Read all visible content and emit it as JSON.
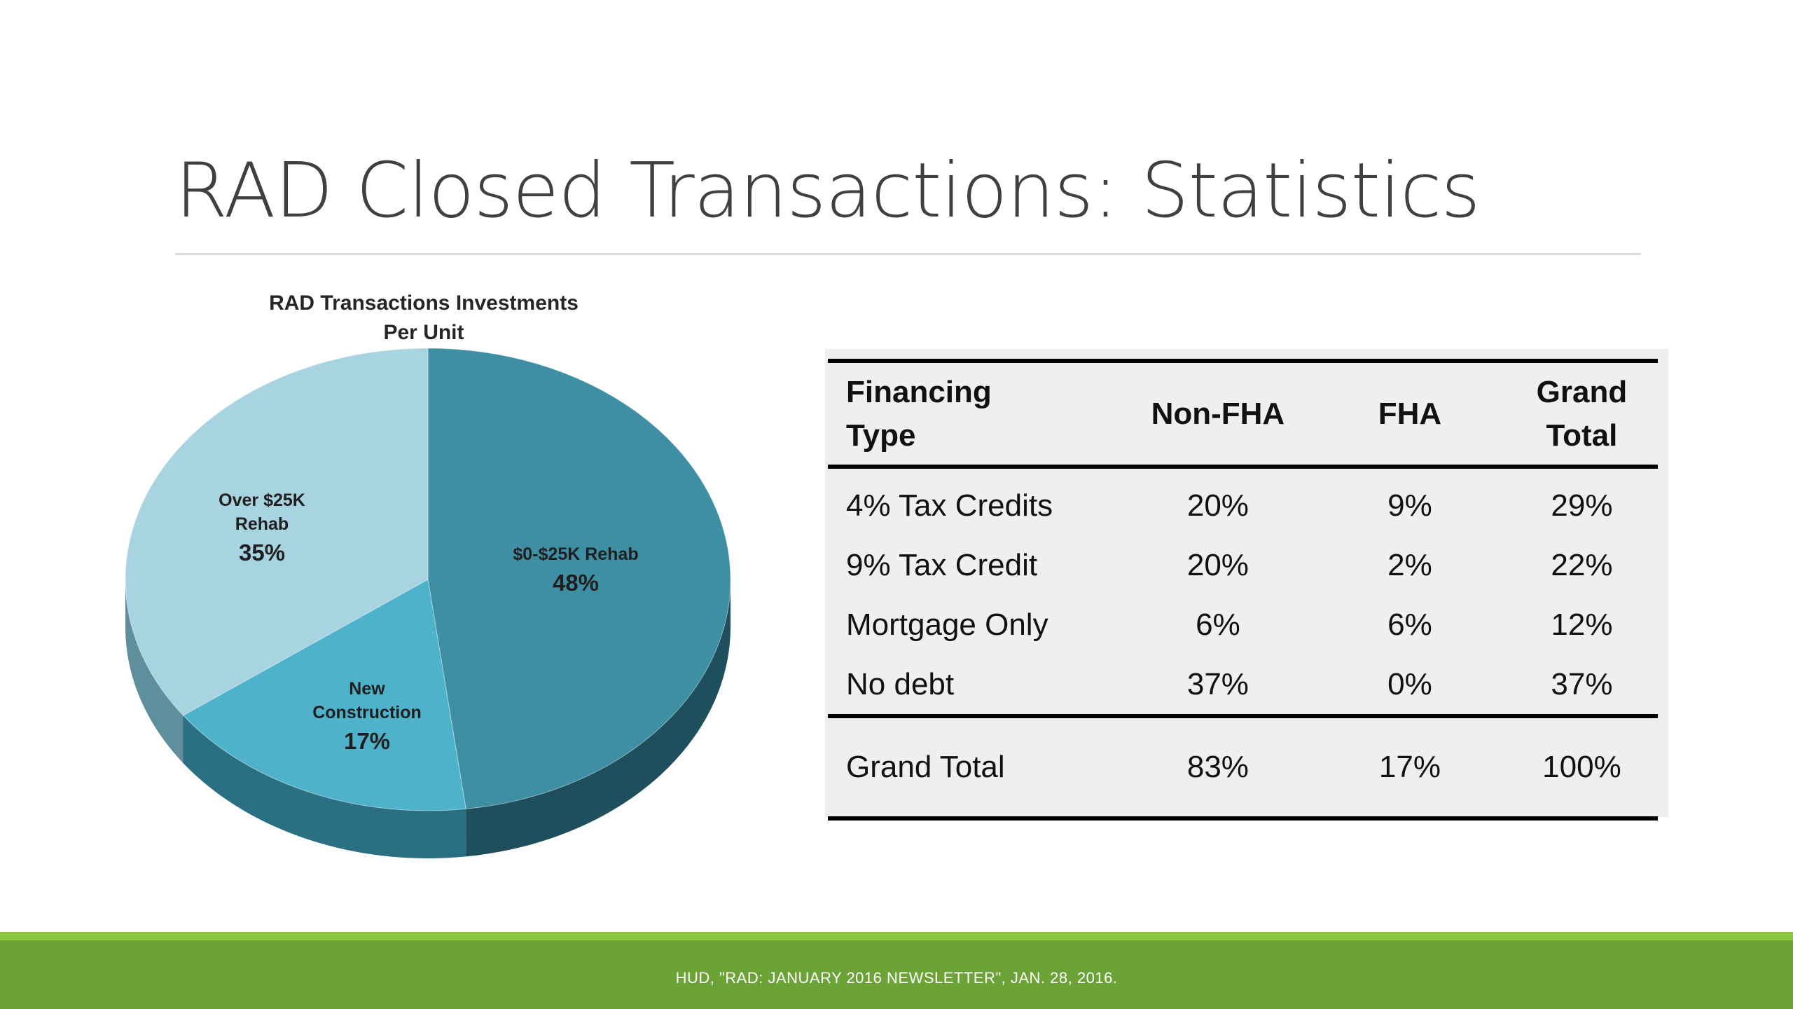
{
  "slide": {
    "title": "RAD Closed Transactions: Statistics",
    "footer": "HUD, \"RAD: JANUARY 2016 NEWSLETTER\", JAN. 28, 2016."
  },
  "colors": {
    "footer_green": "#6ca336",
    "footer_accent": "#8dc63f",
    "slice_rehab_0_25k": "#3f8fa4",
    "slice_new_construction": "#4fb2cb",
    "slice_over_25k": "#a8d3e1"
  },
  "chart_data": [
    {
      "type": "pie",
      "title_line1": "RAD Transactions Investments",
      "title_line2": "Per Unit",
      "slices": [
        {
          "label": "$0-$25K Rehab",
          "value": 48,
          "display": "48%",
          "color": "#3f8fa4",
          "side": "#1f4e5c"
        },
        {
          "label": "New Construction",
          "label_lines": [
            "New",
            "Construction"
          ],
          "value": 17,
          "display": "17%",
          "color": "#4fb2cb",
          "side": "#2a6f82"
        },
        {
          "label": "Over $25K Rehab",
          "label_lines": [
            "Over $25K",
            "Rehab"
          ],
          "value": 35,
          "display": "35%",
          "color": "#a8d3e1",
          "side": "#5f8f9c"
        }
      ]
    },
    {
      "type": "table",
      "headers": [
        {
          "line1": "Financing",
          "line2": "Type"
        },
        {
          "line1": "Non-FHA",
          "line2": ""
        },
        {
          "line1": "FHA",
          "line2": ""
        },
        {
          "line1": "Grand",
          "line2": "Total"
        }
      ],
      "rows": [
        [
          "4% Tax Credits",
          "20%",
          "9%",
          "29%"
        ],
        [
          "9% Tax Credit",
          "20%",
          "2%",
          "22%"
        ],
        [
          "Mortgage Only",
          "6%",
          "6%",
          "12%"
        ],
        [
          "No debt",
          "37%",
          "0%",
          "37%"
        ]
      ],
      "total": [
        "Grand Total",
        "83%",
        "17%",
        "100%"
      ]
    }
  ]
}
